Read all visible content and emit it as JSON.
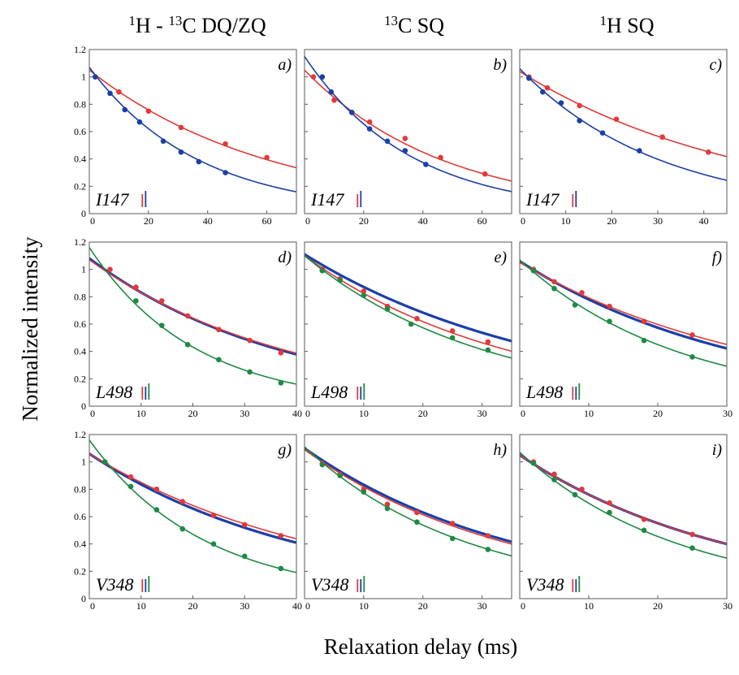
{
  "figure": {
    "column_headers": [
      {
        "parts": [
          {
            "sup": "1"
          },
          {
            "t": "H - "
          },
          {
            "sup": "13"
          },
          {
            "t": "C  DQ/ZQ"
          }
        ]
      },
      {
        "parts": [
          {
            "sup": "13"
          },
          {
            "t": "C SQ"
          }
        ]
      },
      {
        "parts": [
          {
            "sup": "1"
          },
          {
            "t": "H SQ"
          }
        ]
      }
    ],
    "ylabel": "Normalized intensity",
    "xlabel": "Relaxation delay (ms)"
  },
  "colors": {
    "red": "#e03a3a",
    "blue": "#1a3fa8",
    "green": "#1e8a44",
    "axis": "#5a5a5a"
  },
  "chart_data": [
    {
      "type": "scatter",
      "panel": "a)",
      "residue": "I147",
      "marker_colors": [
        "red",
        "blue"
      ],
      "xlim": [
        0,
        70
      ],
      "ylim": [
        0,
        1.2
      ],
      "xticks": [
        0,
        20,
        40,
        60
      ],
      "yticks": [
        0,
        0.2,
        0.4,
        0.6,
        0.8,
        1,
        1.2
      ],
      "show_xtick_max": false,
      "series": [
        {
          "color": "red",
          "curve": {
            "A": 1.05,
            "k": 0.0163
          },
          "line_width": 1.6,
          "points": [
            [
              10,
              0.89
            ],
            [
              20,
              0.75
            ],
            [
              31,
              0.63
            ],
            [
              46,
              0.51
            ],
            [
              60,
              0.41
            ]
          ]
        },
        {
          "color": "blue",
          "curve": {
            "A": 1.07,
            "k": 0.0272
          },
          "line_width": 1.6,
          "points": [
            [
              2,
              1.0
            ],
            [
              7,
              0.88
            ],
            [
              12,
              0.76
            ],
            [
              17,
              0.67
            ],
            [
              25,
              0.53
            ],
            [
              31,
              0.45
            ],
            [
              37,
              0.38
            ],
            [
              46,
              0.3
            ]
          ]
        }
      ]
    },
    {
      "type": "scatter",
      "panel": "b)",
      "residue": "I147",
      "marker_colors": [
        "red",
        "blue"
      ],
      "xlim": [
        0,
        70
      ],
      "ylim": [
        0,
        1.2
      ],
      "xticks": [
        0,
        20,
        40,
        60
      ],
      "yticks": [
        0,
        0.2,
        0.4,
        0.6,
        0.8,
        1,
        1.2
      ],
      "show_xtick_max": false,
      "series": [
        {
          "color": "red",
          "curve": {
            "A": 1.05,
            "k": 0.0212
          },
          "line_width": 1.6,
          "points": [
            [
              3,
              1.0
            ],
            [
              10,
              0.83
            ],
            [
              16,
              0.74
            ],
            [
              22,
              0.67
            ],
            [
              34,
              0.55
            ],
            [
              46,
              0.41
            ],
            [
              61,
              0.29
            ]
          ]
        },
        {
          "color": "blue",
          "curve": {
            "A": 1.15,
            "k": 0.0281
          },
          "line_width": 1.6,
          "points": [
            [
              6,
              1.0
            ],
            [
              9,
              0.89
            ],
            [
              16,
              0.74
            ],
            [
              22,
              0.62
            ],
            [
              28,
              0.53
            ],
            [
              34,
              0.46
            ],
            [
              41,
              0.36
            ]
          ]
        }
      ]
    },
    {
      "type": "scatter",
      "panel": "c)",
      "residue": "I147",
      "marker_colors": [
        "red",
        "blue"
      ],
      "xlim": [
        0,
        45
      ],
      "ylim": [
        0,
        1.2
      ],
      "xticks": [
        0,
        10,
        20,
        30,
        40
      ],
      "yticks": [
        0,
        0.2,
        0.4,
        0.6,
        0.8,
        1,
        1.2
      ],
      "show_xtick_max": false,
      "series": [
        {
          "color": "red",
          "curve": {
            "A": 1.04,
            "k": 0.0203
          },
          "line_width": 1.6,
          "points": [
            [
              2,
              1.0
            ],
            [
              6,
              0.92
            ],
            [
              13,
              0.79
            ],
            [
              21,
              0.69
            ],
            [
              31,
              0.56
            ],
            [
              41,
              0.45
            ]
          ]
        },
        {
          "color": "blue",
          "curve": {
            "A": 1.06,
            "k": 0.0327
          },
          "line_width": 1.6,
          "points": [
            [
              2,
              0.99
            ],
            [
              5,
              0.89
            ],
            [
              9,
              0.81
            ],
            [
              13,
              0.68
            ],
            [
              18,
              0.59
            ],
            [
              26,
              0.46
            ]
          ]
        }
      ]
    },
    {
      "type": "scatter",
      "panel": "d)",
      "residue": "L498",
      "marker_colors": [
        "red",
        "blue",
        "green"
      ],
      "xlim": [
        0,
        40
      ],
      "ylim": [
        0,
        1.2
      ],
      "xticks": [
        0,
        10,
        20,
        30,
        40
      ],
      "yticks": [
        0,
        0.2,
        0.4,
        0.6,
        0.8,
        1,
        1.2
      ],
      "show_xtick_max": true,
      "series": [
        {
          "color": "blue",
          "curve": {
            "A": 1.08,
            "k": 0.0262
          },
          "line_width": 3.2,
          "points": []
        },
        {
          "color": "red",
          "curve": {
            "A": 1.07,
            "k": 0.0254
          },
          "line_width": 1.6,
          "points": [
            [
              4,
              1.0
            ],
            [
              9,
              0.87
            ],
            [
              14,
              0.77
            ],
            [
              19,
              0.66
            ],
            [
              25,
              0.56
            ],
            [
              31,
              0.48
            ],
            [
              37,
              0.39
            ]
          ]
        },
        {
          "color": "green",
          "curve": {
            "A": 1.16,
            "k": 0.0494
          },
          "line_width": 1.6,
          "points": [
            [
              9,
              0.77
            ],
            [
              14,
              0.59
            ],
            [
              19,
              0.45
            ],
            [
              25,
              0.34
            ],
            [
              31,
              0.25
            ],
            [
              37,
              0.17
            ]
          ]
        }
      ]
    },
    {
      "type": "scatter",
      "panel": "e)",
      "residue": "L498",
      "marker_colors": [
        "red",
        "blue",
        "green"
      ],
      "xlim": [
        0,
        35
      ],
      "ylim": [
        0,
        1.2
      ],
      "xticks": [
        0,
        10,
        20,
        30
      ],
      "yticks": [
        0,
        0.2,
        0.4,
        0.6,
        0.8,
        1,
        1.2
      ],
      "show_xtick_max": false,
      "series": [
        {
          "color": "blue",
          "curve": {
            "A": 1.11,
            "k": 0.0242
          },
          "line_width": 3.2,
          "points": []
        },
        {
          "color": "red",
          "curve": {
            "A": 1.1,
            "k": 0.0288
          },
          "line_width": 1.6,
          "points": [
            [
              3,
              1.0
            ],
            [
              6,
              0.93
            ],
            [
              10,
              0.84
            ],
            [
              14,
              0.73
            ],
            [
              19,
              0.64
            ],
            [
              25,
              0.55
            ],
            [
              31,
              0.47
            ]
          ]
        },
        {
          "color": "green",
          "curve": {
            "A": 1.1,
            "k": 0.0326
          },
          "line_width": 1.6,
          "points": [
            [
              3,
              0.99
            ],
            [
              6,
              0.92
            ],
            [
              10,
              0.81
            ],
            [
              14,
              0.71
            ],
            [
              18,
              0.6
            ],
            [
              25,
              0.5
            ],
            [
              31,
              0.41
            ]
          ]
        }
      ]
    },
    {
      "type": "scatter",
      "panel": "f)",
      "residue": "L498",
      "marker_colors": [
        "red",
        "blue",
        "green"
      ],
      "xlim": [
        0,
        30
      ],
      "ylim": [
        0,
        1.2
      ],
      "xticks": [
        0,
        10,
        20,
        30
      ],
      "yticks": [
        0,
        0.2,
        0.4,
        0.6,
        0.8,
        1,
        1.2
      ],
      "show_xtick_max": true,
      "series": [
        {
          "color": "blue",
          "curve": {
            "A": 1.06,
            "k": 0.0307
          },
          "line_width": 3.2,
          "points": []
        },
        {
          "color": "red",
          "curve": {
            "A": 1.05,
            "k": 0.0282
          },
          "line_width": 1.6,
          "points": [
            [
              2,
              1.0
            ],
            [
              5,
              0.91
            ],
            [
              9,
              0.83
            ],
            [
              13,
              0.73
            ],
            [
              18,
              0.62
            ],
            [
              25,
              0.52
            ]
          ]
        },
        {
          "color": "green",
          "curve": {
            "A": 1.07,
            "k": 0.0433
          },
          "line_width": 1.6,
          "points": [
            [
              2,
              0.99
            ],
            [
              5,
              0.86
            ],
            [
              8,
              0.74
            ],
            [
              13,
              0.62
            ],
            [
              18,
              0.48
            ],
            [
              25,
              0.36
            ]
          ]
        }
      ]
    },
    {
      "type": "scatter",
      "panel": "g)",
      "residue": "V348",
      "marker_colors": [
        "red",
        "blue",
        "green"
      ],
      "xlim": [
        0,
        40
      ],
      "ylim": [
        0,
        1.2
      ],
      "xticks": [
        0,
        10,
        20,
        30,
        40
      ],
      "yticks": [
        0,
        0.2,
        0.4,
        0.6,
        0.8,
        1,
        1.2
      ],
      "show_xtick_max": true,
      "series": [
        {
          "color": "blue",
          "curve": {
            "A": 1.06,
            "k": 0.0238
          },
          "line_width": 3.2,
          "points": []
        },
        {
          "color": "red",
          "curve": {
            "A": 1.06,
            "k": 0.0221
          },
          "line_width": 1.6,
          "points": [
            [
              3,
              1.0
            ],
            [
              8,
              0.89
            ],
            [
              13,
              0.8
            ],
            [
              18,
              0.71
            ],
            [
              24,
              0.61
            ],
            [
              30,
              0.54
            ],
            [
              37,
              0.46
            ]
          ]
        },
        {
          "color": "green",
          "curve": {
            "A": 1.16,
            "k": 0.0451
          },
          "line_width": 1.6,
          "points": [
            [
              3,
              1.0
            ],
            [
              8,
              0.82
            ],
            [
              13,
              0.65
            ],
            [
              18,
              0.51
            ],
            [
              24,
              0.4
            ],
            [
              30,
              0.31
            ],
            [
              37,
              0.22
            ]
          ]
        }
      ]
    },
    {
      "type": "scatter",
      "panel": "h)",
      "residue": "V348",
      "marker_colors": [
        "red",
        "blue",
        "green"
      ],
      "xlim": [
        0,
        35
      ],
      "ylim": [
        0,
        1.2
      ],
      "xticks": [
        0,
        10,
        20,
        30
      ],
      "yticks": [
        0,
        0.2,
        0.4,
        0.6,
        0.8,
        1,
        1.2
      ],
      "show_xtick_max": false,
      "series": [
        {
          "color": "blue",
          "curve": {
            "A": 1.1,
            "k": 0.0278
          },
          "line_width": 3.2,
          "points": []
        },
        {
          "color": "red",
          "curve": {
            "A": 1.09,
            "k": 0.0287
          },
          "line_width": 1.6,
          "points": [
            [
              3,
              0.99
            ],
            [
              6,
              0.91
            ],
            [
              10,
              0.8
            ],
            [
              14,
              0.69
            ],
            [
              19,
              0.63
            ],
            [
              25,
              0.55
            ],
            [
              31,
              0.46
            ]
          ]
        },
        {
          "color": "green",
          "curve": {
            "A": 1.11,
            "k": 0.0362
          },
          "line_width": 1.6,
          "points": [
            [
              3,
              0.98
            ],
            [
              6,
              0.9
            ],
            [
              10,
              0.78
            ],
            [
              14,
              0.66
            ],
            [
              19,
              0.56
            ],
            [
              25,
              0.44
            ],
            [
              31,
              0.36
            ]
          ]
        }
      ]
    },
    {
      "type": "scatter",
      "panel": "i)",
      "residue": "V348",
      "marker_colors": [
        "red",
        "blue",
        "green"
      ],
      "xlim": [
        0,
        30
      ],
      "ylim": [
        0,
        1.2
      ],
      "xticks": [
        0,
        10,
        20,
        30
      ],
      "yticks": [
        0,
        0.2,
        0.4,
        0.6,
        0.8,
        1,
        1.2
      ],
      "show_xtick_max": true,
      "series": [
        {
          "color": "blue",
          "curve": {
            "A": 1.05,
            "k": 0.0322
          },
          "line_width": 3.2,
          "points": []
        },
        {
          "color": "red",
          "curve": {
            "A": 1.05,
            "k": 0.0322
          },
          "line_width": 1.6,
          "points": [
            [
              2,
              1.0
            ],
            [
              5,
              0.91
            ],
            [
              9,
              0.8
            ],
            [
              13,
              0.7
            ],
            [
              18,
              0.58
            ],
            [
              25,
              0.47
            ]
          ]
        },
        {
          "color": "green",
          "curve": {
            "A": 1.07,
            "k": 0.0428
          },
          "line_width": 1.6,
          "points": [
            [
              2,
              0.99
            ],
            [
              5,
              0.87
            ],
            [
              8,
              0.76
            ],
            [
              13,
              0.63
            ],
            [
              18,
              0.5
            ],
            [
              25,
              0.37
            ]
          ]
        }
      ]
    }
  ]
}
